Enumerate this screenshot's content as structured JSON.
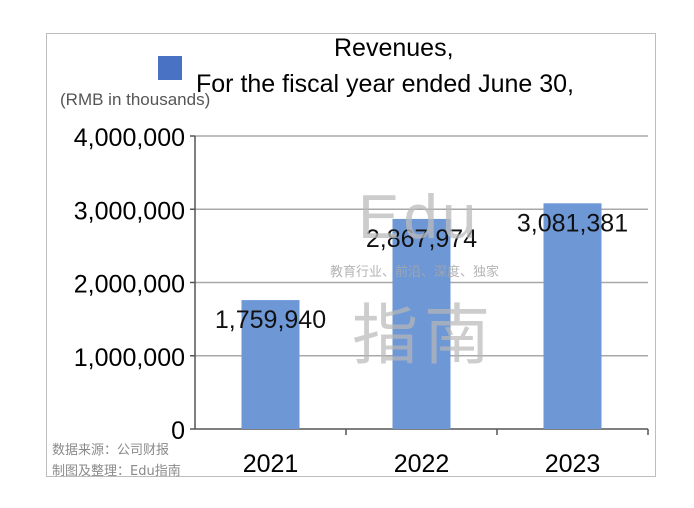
{
  "legend": {
    "color": "#4a72c4"
  },
  "title_lines": [
    "Revenues,",
    "For the fiscal year ended June 30,"
  ],
  "unit_label": "(RMB in thousands)",
  "footer": {
    "source": "数据来源：公司财报",
    "maker": "制图及整理：Edu指南"
  },
  "watermark": {
    "brand": "Edu",
    "tagline": "教育行业、前沿、深度、独家",
    "brand_cn": "指南"
  },
  "chart_data": {
    "type": "bar",
    "title": "Revenues,\nFor the fiscal year ended June 30,",
    "xlabel": "",
    "ylabel": "(RMB in thousands)",
    "categories": [
      "2021",
      "2022",
      "2023"
    ],
    "series": [
      {
        "values": [
          1759940,
          2867974,
          3081381
        ],
        "color": "#6e97d6"
      }
    ],
    "data_labels": [
      "1,759,940",
      "2,867,974",
      "3,081,381"
    ],
    "ylim": [
      0,
      4000000
    ],
    "yticks": [
      0,
      1000000,
      2000000,
      3000000,
      4000000
    ],
    "ytick_labels": [
      "0",
      "1,000,000",
      "2,000,000",
      "3,000,000",
      "4,000,000"
    ],
    "grid": true,
    "legend_position": "top-left",
    "gridline_color": "#a8a8a8"
  }
}
